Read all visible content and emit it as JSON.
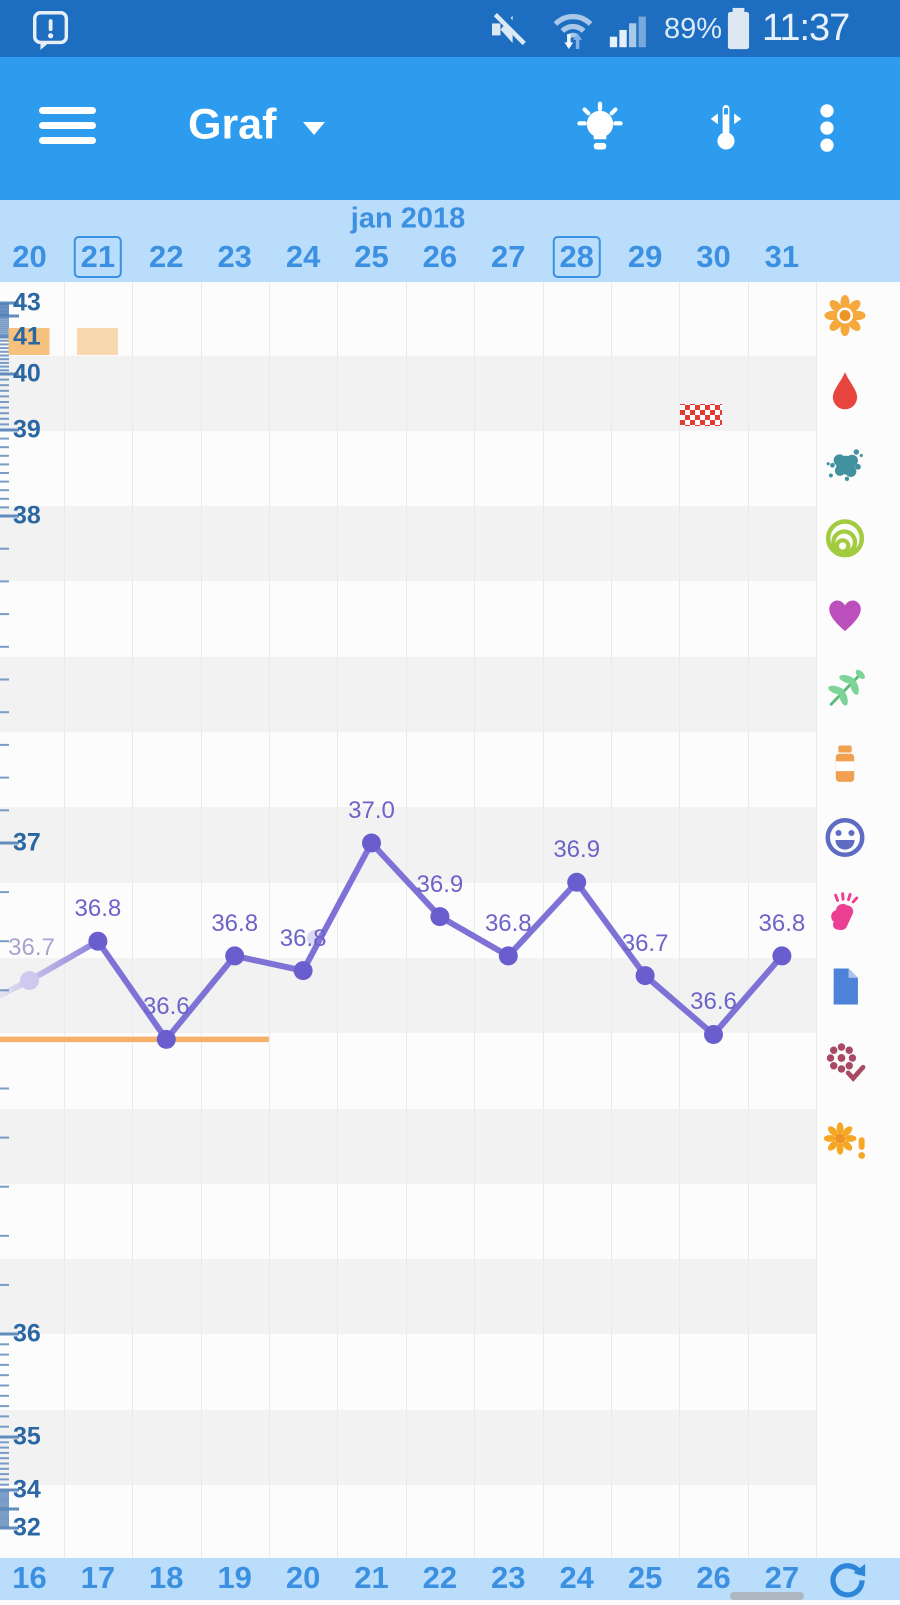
{
  "status_bar": {
    "time": "11:37",
    "battery": "89%"
  },
  "app_bar": {
    "title": "Graf"
  },
  "calendar_header": {
    "month": "jan 2018",
    "days": [
      "20",
      "21",
      "22",
      "23",
      "24",
      "25",
      "26",
      "27",
      "28",
      "29",
      "30",
      "31"
    ],
    "boxed_days": [
      "21",
      "28"
    ]
  },
  "bottom_bar": {
    "days": [
      "16",
      "17",
      "18",
      "19",
      "20",
      "21",
      "22",
      "23",
      "24",
      "25",
      "26",
      "27"
    ]
  },
  "chart_data": {
    "type": "line",
    "series": [
      {
        "name": "basal-temperature",
        "color": "#7e72d6",
        "points": [
          {
            "day": 20,
            "label": "36.7",
            "temp": 36.72
          },
          {
            "day": 21,
            "label": "36.8",
            "temp": 36.8
          },
          {
            "day": 22,
            "label": "36.6",
            "temp": 36.6
          },
          {
            "day": 23,
            "label": "36.8",
            "temp": 36.77
          },
          {
            "day": 24,
            "label": "36.8",
            "temp": 36.74
          },
          {
            "day": 25,
            "label": "37.0",
            "temp": 37.0
          },
          {
            "day": 26,
            "label": "36.9",
            "temp": 36.85
          },
          {
            "day": 27,
            "label": "36.8",
            "temp": 36.77
          },
          {
            "day": 28,
            "label": "36.9",
            "temp": 36.92
          },
          {
            "day": 29,
            "label": "36.7",
            "temp": 36.73
          },
          {
            "day": 30,
            "label": "36.6",
            "temp": 36.61
          },
          {
            "day": 31,
            "label": "36.8",
            "temp": 36.77
          }
        ]
      }
    ],
    "lead_in_temp": 36.65,
    "y_axis_labels": [
      "43",
      "41",
      "40",
      "39",
      "38",
      "37",
      "36",
      "35",
      "34",
      "32"
    ],
    "coverline": {
      "temp": 36.6,
      "from_day": 20,
      "to_day": 23.5,
      "color": "#f5b169"
    },
    "markers": [
      {
        "day": 20,
        "type": "highlight",
        "color": "#f5c17c"
      },
      {
        "day": 21,
        "type": "highlight",
        "color": "#f8d8ad"
      },
      {
        "day": 30,
        "type": "checker",
        "color": "#e23b32"
      }
    ]
  },
  "event_icons": [
    {
      "name": "flower",
      "color": "#f5a83c"
    },
    {
      "name": "droplet",
      "color": "#e8453f"
    },
    {
      "name": "splat",
      "color": "#41929e"
    },
    {
      "name": "rings",
      "color": "#a3cb3f"
    },
    {
      "name": "heart",
      "color": "#bb4fbc"
    },
    {
      "name": "leaves",
      "color": "#7ed398"
    },
    {
      "name": "medicine-bottle",
      "color": "#f0a050"
    },
    {
      "name": "smiley",
      "color": "#5e6cc4"
    },
    {
      "name": "sneeze",
      "color": "#ea3f92"
    },
    {
      "name": "document",
      "color": "#4d82d8"
    },
    {
      "name": "flower-check",
      "color": "#a84a66"
    },
    {
      "name": "flower-alert",
      "color": "#f5a623"
    }
  ]
}
